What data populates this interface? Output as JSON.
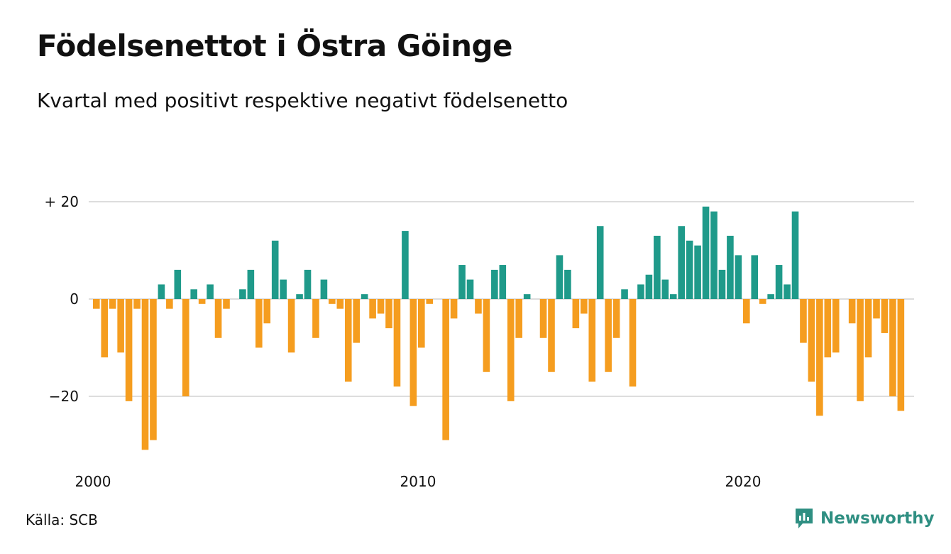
{
  "header": {
    "title": "Födelsenettot i Östra Göinge",
    "subtitle": "Kvartal med positivt respektive negativt födelsenetto"
  },
  "footer": {
    "source": "Källa: SCB",
    "brand": "Newsworthy",
    "brand_icon": "newsworthy-logo-icon"
  },
  "colors": {
    "positive": "#1f9a8a",
    "negative": "#f59d1f",
    "grid": "#dddddd",
    "brand": "#2f8f82"
  },
  "chart_data": {
    "type": "bar",
    "title": "Födelsenettot i Östra Göinge",
    "subtitle": "Kvartal med positivt respektive negativt födelsenetto",
    "xlabel": "",
    "ylabel": "",
    "ylim": [
      -33,
      20
    ],
    "yticks": [
      {
        "value": 20,
        "label": "+ 20"
      },
      {
        "value": 0,
        "label": "0"
      },
      {
        "value": -20,
        "label": "−20"
      }
    ],
    "xticks": [
      {
        "label": "2000",
        "index": 0
      },
      {
        "label": "2010",
        "index": 40
      },
      {
        "label": "2020",
        "index": 80
      }
    ],
    "grid": true,
    "x_start": "2000 Q1",
    "frequency": "quarterly",
    "values": [
      -2,
      -12,
      -2,
      -11,
      -21,
      -2,
      -31,
      -29,
      3,
      -2,
      6,
      -20,
      2,
      -1,
      3,
      -8,
      -2,
      0,
      2,
      6,
      -10,
      -5,
      12,
      4,
      -11,
      1,
      6,
      -8,
      4,
      -1,
      -2,
      -17,
      -9,
      1,
      -4,
      -3,
      -6,
      -18,
      14,
      -22,
      -10,
      -1,
      0,
      -29,
      -4,
      7,
      4,
      -3,
      -15,
      6,
      7,
      -21,
      -8,
      1,
      0,
      -8,
      -15,
      9,
      6,
      -6,
      -3,
      -17,
      15,
      -15,
      -8,
      2,
      -18,
      3,
      5,
      13,
      4,
      1,
      15,
      12,
      11,
      19,
      18,
      6,
      13,
      9,
      -5,
      9,
      -1,
      1,
      7,
      3,
      18,
      -9,
      -17,
      -24,
      -12,
      -11,
      0,
      -5,
      -21,
      -12,
      -4,
      -7,
      -20,
      -23
    ]
  }
}
